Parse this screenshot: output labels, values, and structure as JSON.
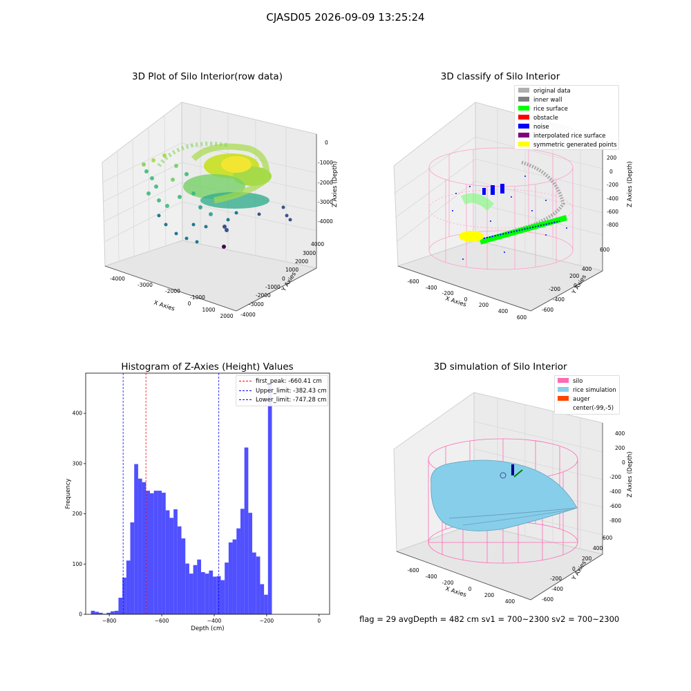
{
  "suptitle": "CJASD05 2026-09-09 13:25:24",
  "panels": {
    "raw": {
      "title": "3D Plot of Silo Interior(row data)",
      "xlabel": "X Axies",
      "ylabel": "Y Axies",
      "zlabel": "Z Axies (Depth)",
      "xticks": [
        "-4000",
        "-3000",
        "-2000",
        "-1000",
        "0",
        "1000",
        "2000"
      ],
      "yticks": [
        "4000",
        "3000",
        "2000",
        "1000",
        "0",
        "-1000",
        "-2000",
        "-3000",
        "-4000"
      ],
      "zticks": [
        "0",
        "-1000",
        "-2000",
        "-3000",
        "-4000"
      ]
    },
    "classify": {
      "title": "3D classify of Silo Interior",
      "xlabel": "X Axies",
      "ylabel": "Y Axies",
      "zlabel": "Z Axies (Depth)",
      "xticks": [
        "-600",
        "-400",
        "-200",
        "0",
        "200",
        "400",
        "600"
      ],
      "yticks": [
        "600",
        "400",
        "200",
        "0",
        "-200",
        "-400",
        "-600"
      ],
      "zticks": [
        "200",
        "0",
        "-200",
        "-400",
        "-600",
        "-800"
      ],
      "legend": [
        {
          "label": "original data",
          "color": "#b0b0b0"
        },
        {
          "label": "inner wall",
          "color": "#808080"
        },
        {
          "label": "rice surface",
          "color": "#00ff00"
        },
        {
          "label": "obstacle",
          "color": "#ff0000"
        },
        {
          "label": "noise",
          "color": "#0000ff"
        },
        {
          "label": "interpolated rice surface",
          "color": "#800080"
        },
        {
          "label": "symmetric generated points",
          "color": "#ffff00"
        }
      ]
    },
    "simulation": {
      "title": "3D simulation of Silo Interior",
      "xlabel": "X Axies",
      "ylabel": "Y Axies",
      "zlabel": "Z Axies (Depth)",
      "xticks": [
        "-600",
        "-400",
        "-200",
        "0",
        "200",
        "400"
      ],
      "yticks": [
        "600",
        "400",
        "200",
        "0",
        "-200",
        "-400",
        "-600"
      ],
      "zticks": [
        "400",
        "200",
        "0",
        "-200",
        "-400",
        "-600",
        "-800"
      ],
      "legend": [
        {
          "label": "silo",
          "color": "#ff69b4"
        },
        {
          "label": "rice simulation",
          "color": "#87ceeb"
        },
        {
          "label": "auger",
          "color": "#ff4500"
        },
        {
          "label": "center(-99,-5)",
          "color": ""
        }
      ]
    }
  },
  "footer": "flag = 29  avgDepth = 482 cm  sv1 = 700~2300  sv2 = 700~2300",
  "chart_data": {
    "type": "bar",
    "title": "Histogram of Z-Axies (Height) Values",
    "xlabel": "Depth (cm)",
    "ylabel": "Frequency",
    "xlim": [
      -890,
      40
    ],
    "ylim": [
      0,
      480
    ],
    "xticks": [
      -800,
      -600,
      -400,
      -200,
      0
    ],
    "yticks": [
      0,
      100,
      200,
      300,
      400
    ],
    "bin_width": 15,
    "bin_start": -870,
    "values": [
      7,
      5,
      3,
      1,
      3,
      6,
      7,
      33,
      73,
      107,
      183,
      299,
      270,
      263,
      246,
      241,
      246,
      246,
      242,
      207,
      192,
      209,
      175,
      151,
      101,
      81,
      98,
      109,
      84,
      81,
      87,
      75,
      76,
      68,
      103,
      143,
      149,
      171,
      210,
      332,
      202,
      123,
      115,
      60,
      39,
      460
    ],
    "bar_color": "#5050ff",
    "vlines": [
      {
        "label": "first_peak: -660.41 cm",
        "x": -660.41,
        "color": "#ff0000"
      },
      {
        "label": "Upper_limit: -382.43 cm",
        "x": -382.43,
        "color": "#0000ff"
      },
      {
        "label": "Lower_limit: -747.28 cm",
        "x": -747.28,
        "color": "#0000ff"
      }
    ],
    "legend_position": "top-right"
  }
}
